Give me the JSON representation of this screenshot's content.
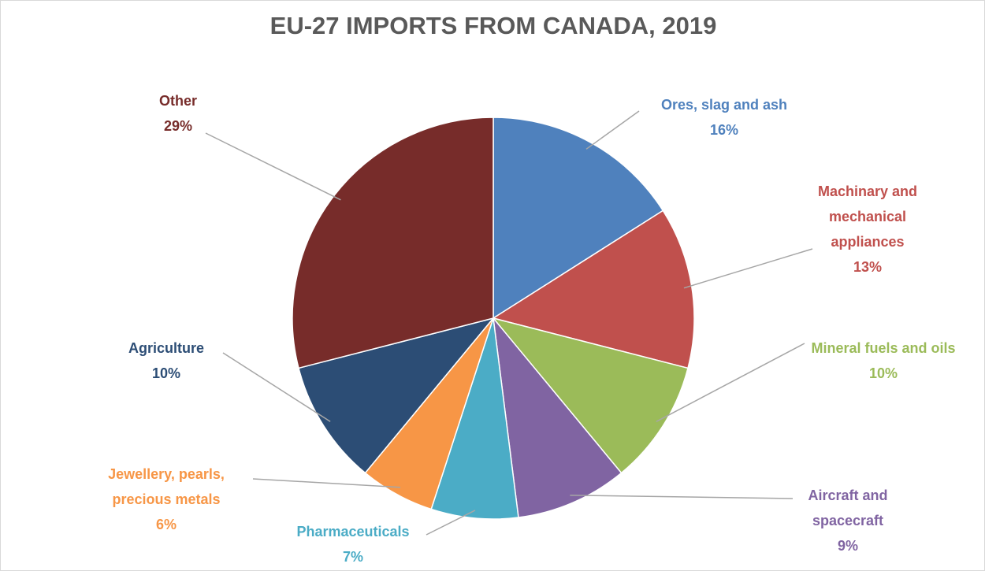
{
  "chart_data": {
    "type": "pie",
    "title": "EU-27 IMPORTS FROM CANADA, 2019",
    "categories": [
      "Ores, slag and ash",
      "Machinary and mechanical appliances",
      "Mineral fuels and oils",
      "Aircraft and spacecraft",
      "Pharmaceuticals",
      "Jewellery, pearls, precious metals",
      "Agriculture",
      "Other"
    ],
    "values": [
      16,
      13,
      10,
      9,
      7,
      6,
      10,
      29
    ],
    "value_labels": [
      "16%",
      "13%",
      "10%",
      "9%",
      "7%",
      "6%",
      "10%",
      "29%"
    ],
    "colors": [
      "#4f81bd",
      "#c0504d",
      "#9bbb59",
      "#8064a2",
      "#4bacc6",
      "#f79646",
      "#2c4d75",
      "#772c2a"
    ]
  }
}
